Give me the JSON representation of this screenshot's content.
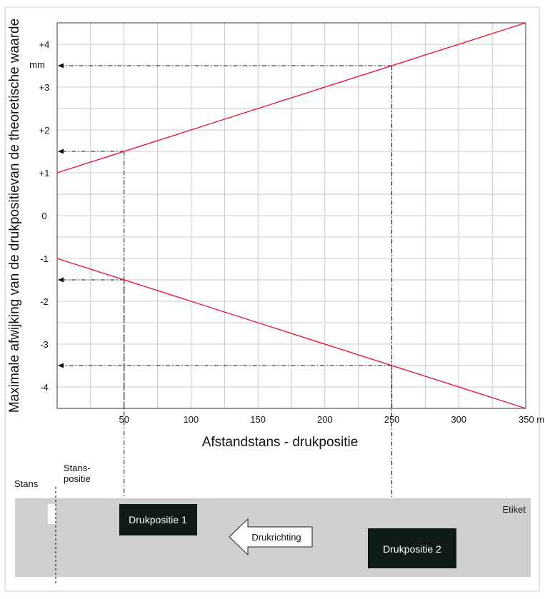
{
  "chart_data": {
    "type": "line",
    "xlabel": "Afstandstans - drukpositie",
    "ylabel": "Maximale afwijking van de drukpositievan de theoretische waarde",
    "y_unit_label": "mm",
    "x_unit_label": "350 mm",
    "xlim": [
      0,
      350
    ],
    "ylim": [
      -4.5,
      4.5
    ],
    "grid": true,
    "x_ticks": [
      {
        "value": 50,
        "label": "50"
      },
      {
        "value": 100,
        "label": "100"
      },
      {
        "value": 150,
        "label": "150"
      },
      {
        "value": 200,
        "label": "200"
      },
      {
        "value": 250,
        "label": "250"
      },
      {
        "value": 300,
        "label": "300"
      },
      {
        "value": 350,
        "label": "350 mm"
      }
    ],
    "y_ticks": [
      {
        "value": 4,
        "label": "+4"
      },
      {
        "value": 3,
        "label": "+3"
      },
      {
        "value": 2,
        "label": "+2"
      },
      {
        "value": 1,
        "label": "+1"
      },
      {
        "value": 0,
        "label": "0"
      },
      {
        "value": -1,
        "label": "-1"
      },
      {
        "value": -2,
        "label": "-2"
      },
      {
        "value": -3,
        "label": "-3"
      },
      {
        "value": -4,
        "label": "-4"
      }
    ],
    "series": [
      {
        "x": [
          0,
          350
        ],
        "y": [
          1,
          4.5
        ],
        "color": "#e3173e"
      },
      {
        "x": [
          0,
          350
        ],
        "y": [
          -1,
          -4.5
        ],
        "color": "#e3173e"
      }
    ],
    "annotations": [
      {
        "x": 50,
        "y": 1.5
      },
      {
        "x": 50,
        "y": -1.5
      },
      {
        "x": 250,
        "y": 3.5
      },
      {
        "x": 250,
        "y": -3.5
      }
    ]
  },
  "diagram": {
    "stans_label": "Stans",
    "stanspositie_label_1": "Stans-",
    "stanspositie_label_2": "positie",
    "etiket_label": "Etiket",
    "drukpositie1_label": "Drukpositie 1",
    "drukpositie2_label": "Drukpositie 2",
    "drukrichting_label": "Drukrichting",
    "strip_color": "#cfcfcf",
    "box_color": "#0e1a14"
  }
}
